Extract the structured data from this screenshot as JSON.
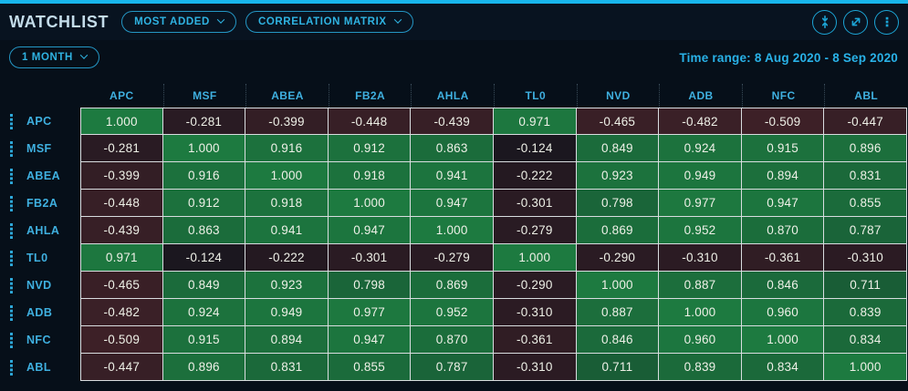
{
  "header": {
    "title": "WATCHLIST",
    "view_dropdown": "MOST ADDED",
    "matrix_dropdown": "CORRELATION MATRIX",
    "icons": [
      "collapse-vertical-icon",
      "expand-icon",
      "kebab-menu-icon"
    ]
  },
  "toolbar": {
    "period": "1 MONTH",
    "time_range": "Time range: 8 Aug 2020 - 8 Sep 2020"
  },
  "chart_data": {
    "type": "heatmap",
    "title": "Correlation Matrix",
    "symbols": [
      "APC",
      "MSF",
      "ABEA",
      "FB2A",
      "AHLA",
      "TL0",
      "NVD",
      "ADB",
      "NFC",
      "ABL"
    ],
    "matrix": [
      [
        1.0,
        -0.281,
        -0.399,
        -0.448,
        -0.439,
        0.971,
        -0.465,
        -0.482,
        -0.509,
        -0.447
      ],
      [
        -0.281,
        1.0,
        0.916,
        0.912,
        0.863,
        -0.124,
        0.849,
        0.924,
        0.915,
        0.896
      ],
      [
        -0.399,
        0.916,
        1.0,
        0.918,
        0.941,
        -0.222,
        0.923,
        0.949,
        0.894,
        0.831
      ],
      [
        -0.448,
        0.912,
        0.918,
        1.0,
        0.947,
        -0.301,
        0.798,
        0.977,
        0.947,
        0.855
      ],
      [
        -0.439,
        0.863,
        0.941,
        0.947,
        1.0,
        -0.279,
        0.869,
        0.952,
        0.87,
        0.787
      ],
      [
        0.971,
        -0.124,
        -0.222,
        -0.301,
        -0.279,
        1.0,
        -0.29,
        -0.31,
        -0.361,
        -0.31
      ],
      [
        -0.465,
        0.849,
        0.923,
        0.798,
        0.869,
        -0.29,
        1.0,
        0.887,
        0.846,
        0.711
      ],
      [
        -0.482,
        0.924,
        0.949,
        0.977,
        0.952,
        -0.31,
        0.887,
        1.0,
        0.96,
        0.839
      ],
      [
        -0.509,
        0.915,
        0.894,
        0.947,
        0.87,
        -0.361,
        0.846,
        0.96,
        1.0,
        0.834
      ],
      [
        -0.447,
        0.896,
        0.831,
        0.855,
        0.787,
        -0.31,
        0.711,
        0.839,
        0.834,
        1.0
      ]
    ],
    "value_range": [
      -1,
      1
    ],
    "colors": {
      "positive": "#1d7a40",
      "negative": "#682c31",
      "zero": "#10141d"
    }
  },
  "colors": {
    "accent": "#18b6ec",
    "label": "#3fb0e0",
    "cell_border": "#d9dde0"
  }
}
